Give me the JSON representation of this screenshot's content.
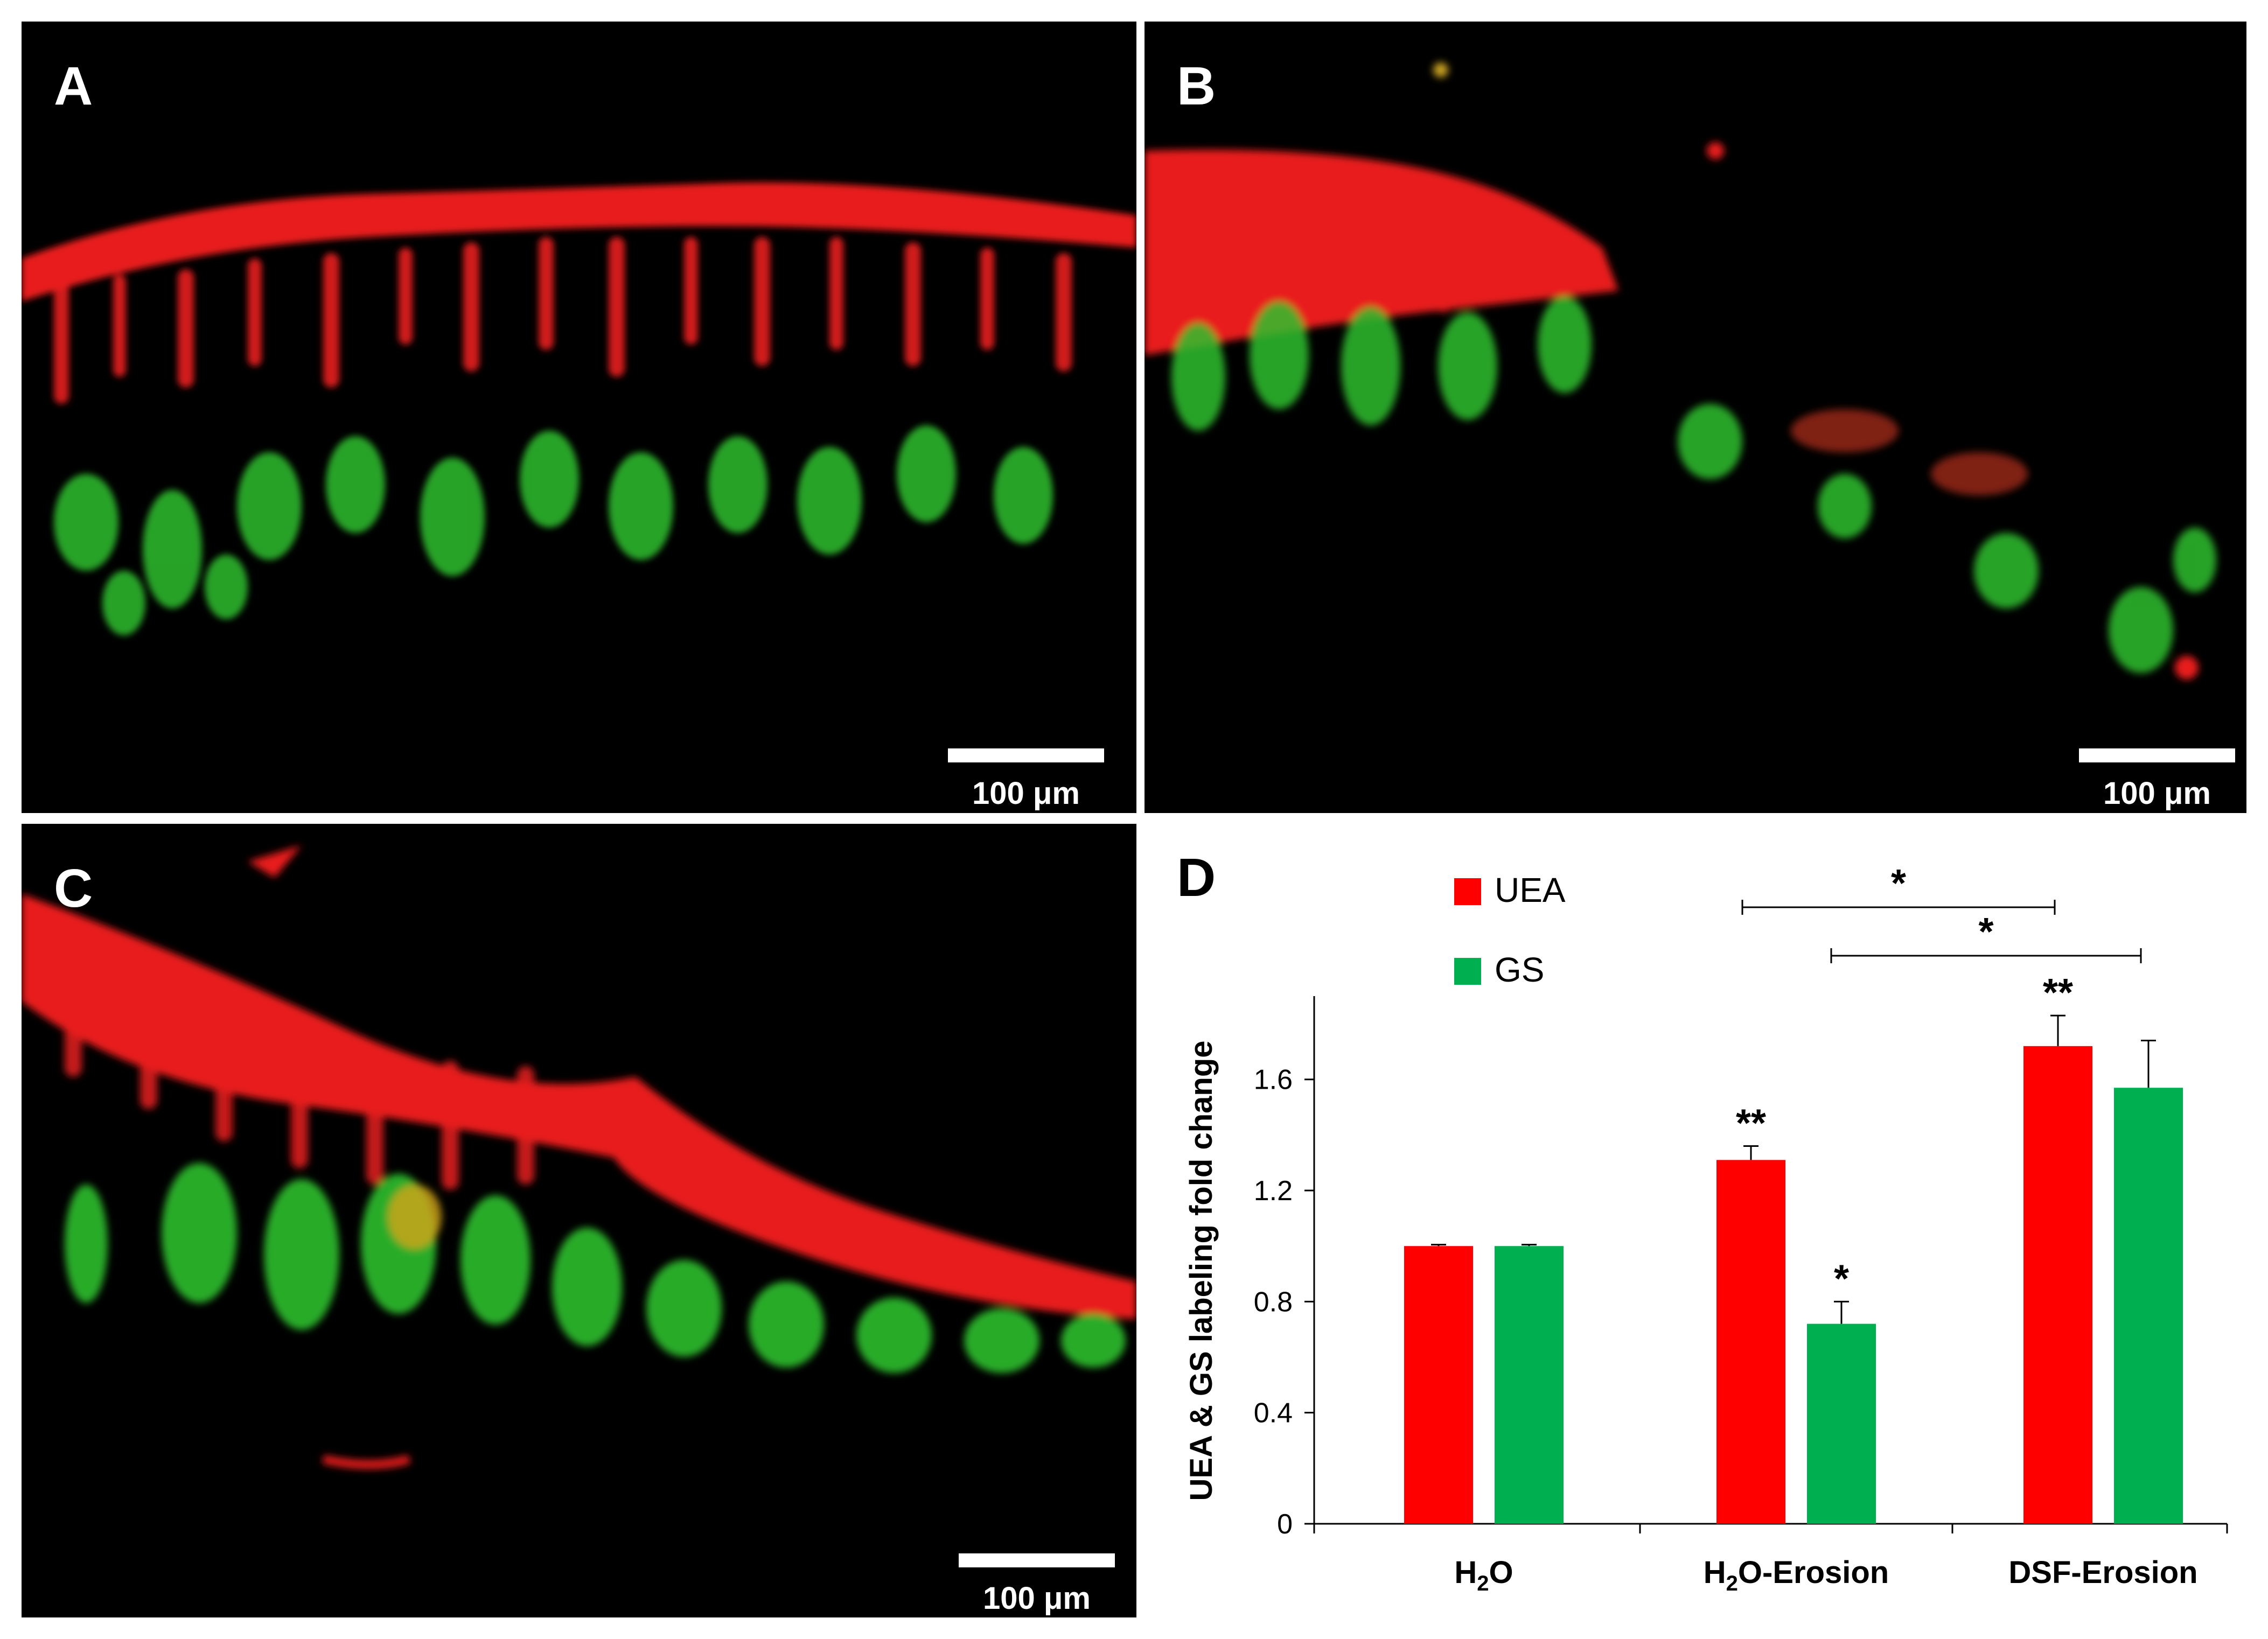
{
  "panels": {
    "A": {
      "label": "A",
      "scale_bar": "100 μm"
    },
    "B": {
      "label": "B",
      "scale_bar": "100 μm"
    },
    "C": {
      "label": "C",
      "scale_bar": "100 μm"
    },
    "D": {
      "label": "D"
    }
  },
  "colors": {
    "uea": "#ff0000",
    "gs": "#00b050",
    "tissue_red": "#e81c1c",
    "tissue_green": "#2fbf2f",
    "background": "#000000"
  },
  "chart_data": {
    "type": "bar",
    "categories": [
      "H2O",
      "H2O-Erosion",
      "DSF-Erosion"
    ],
    "category_labels": [
      {
        "base": "H",
        "sub": "2",
        "rest": "O"
      },
      {
        "base": "H",
        "sub": "2",
        "rest": "O-Erosion"
      },
      {
        "base": "DSF-Erosion",
        "sub": "",
        "rest": ""
      }
    ],
    "series": [
      {
        "name": "UEA",
        "color": "#ff0000",
        "values": [
          1.0,
          1.31,
          1.72
        ],
        "errors": [
          0.005,
          0.05,
          0.11
        ],
        "significance": [
          "",
          "**",
          "**"
        ]
      },
      {
        "name": "GS",
        "color": "#00b050",
        "values": [
          1.0,
          0.72,
          1.57
        ],
        "errors": [
          0.005,
          0.08,
          0.17
        ],
        "significance": [
          "",
          "*",
          ""
        ]
      }
    ],
    "ylabel": "UEA & GS labeling fold change",
    "xlabel": "",
    "ylim": [
      0,
      1.9
    ],
    "yticks": [
      0,
      0.4,
      0.8,
      1.2,
      1.6
    ],
    "ytick_labels": [
      "0",
      "0.4",
      "0.8",
      "1.2",
      "1.6"
    ],
    "legend": {
      "position": "top-left",
      "entries": [
        "UEA",
        "GS"
      ]
    },
    "comparisons": [
      {
        "from": "H2O-Erosion UEA",
        "to": "DSF-Erosion UEA",
        "label": "*"
      },
      {
        "from": "H2O-Erosion GS",
        "to": "DSF-Erosion GS",
        "label": "*"
      }
    ],
    "grid": false
  }
}
